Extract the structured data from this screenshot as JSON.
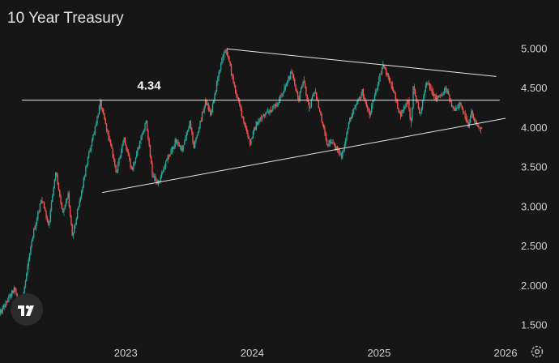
{
  "title": "10 Year Treasury",
  "colors": {
    "background": "#161616",
    "up": "#26a69a",
    "down": "#ef5350",
    "line": "#e6e6e6",
    "text": "#cfcfcf"
  },
  "icons": {
    "logo": "tradingview-logo-icon",
    "settings": "gear-icon"
  },
  "chart_data": {
    "type": "candlestick",
    "title": "10 Year Treasury",
    "ylim": [
      1.3,
      5.3
    ],
    "y_ticks": [
      "5.000",
      "4.500",
      "4.000",
      "3.500",
      "3.000",
      "2.500",
      "2.000",
      "1.500"
    ],
    "y_tick_values": [
      5.0,
      4.5,
      4.0,
      3.5,
      3.0,
      2.5,
      2.0,
      1.5
    ],
    "x_ticks": [
      "2023",
      "2024",
      "2025",
      "2026"
    ],
    "x_tick_dates": [
      "2023-01-01",
      "2024-01-01",
      "2025-01-01",
      "2026-01-01"
    ],
    "xlim": [
      "2022-01-03",
      "2026-01-15"
    ],
    "price_path": [
      {
        "date": "2022-01-03",
        "value": 1.63
      },
      {
        "date": "2022-02-15",
        "value": 1.95
      },
      {
        "date": "2022-03-07",
        "value": 1.72
      },
      {
        "date": "2022-04-10",
        "value": 2.65
      },
      {
        "date": "2022-05-05",
        "value": 3.1
      },
      {
        "date": "2022-05-25",
        "value": 2.75
      },
      {
        "date": "2022-06-14",
        "value": 3.45
      },
      {
        "date": "2022-07-05",
        "value": 2.9
      },
      {
        "date": "2022-07-20",
        "value": 3.15
      },
      {
        "date": "2022-08-01",
        "value": 2.6
      },
      {
        "date": "2022-08-20",
        "value": 3.0
      },
      {
        "date": "2022-09-15",
        "value": 3.6
      },
      {
        "date": "2022-10-21",
        "value": 4.3
      },
      {
        "date": "2022-11-15",
        "value": 3.85
      },
      {
        "date": "2022-12-07",
        "value": 3.42
      },
      {
        "date": "2022-12-28",
        "value": 3.88
      },
      {
        "date": "2023-01-20",
        "value": 3.45
      },
      {
        "date": "2023-02-15",
        "value": 3.85
      },
      {
        "date": "2023-03-02",
        "value": 4.08
      },
      {
        "date": "2023-03-20",
        "value": 3.4
      },
      {
        "date": "2023-04-06",
        "value": 3.28
      },
      {
        "date": "2023-04-25",
        "value": 3.52
      },
      {
        "date": "2023-05-26",
        "value": 3.82
      },
      {
        "date": "2023-06-15",
        "value": 3.72
      },
      {
        "date": "2023-07-06",
        "value": 4.05
      },
      {
        "date": "2023-07-18",
        "value": 3.75
      },
      {
        "date": "2023-08-21",
        "value": 4.33
      },
      {
        "date": "2023-09-05",
        "value": 4.15
      },
      {
        "date": "2023-10-03",
        "value": 4.8
      },
      {
        "date": "2023-10-19",
        "value": 4.99
      },
      {
        "date": "2023-11-15",
        "value": 4.45
      },
      {
        "date": "2023-12-27",
        "value": 3.8
      },
      {
        "date": "2024-01-15",
        "value": 4.05
      },
      {
        "date": "2024-02-05",
        "value": 4.15
      },
      {
        "date": "2024-03-15",
        "value": 4.3
      },
      {
        "date": "2024-04-25",
        "value": 4.7
      },
      {
        "date": "2024-05-15",
        "value": 4.35
      },
      {
        "date": "2024-05-29",
        "value": 4.62
      },
      {
        "date": "2024-06-15",
        "value": 4.22
      },
      {
        "date": "2024-07-01",
        "value": 4.47
      },
      {
        "date": "2024-08-05",
        "value": 3.78
      },
      {
        "date": "2024-08-20",
        "value": 3.82
      },
      {
        "date": "2024-09-16",
        "value": 3.62
      },
      {
        "date": "2024-10-10",
        "value": 4.1
      },
      {
        "date": "2024-11-15",
        "value": 4.45
      },
      {
        "date": "2024-12-06",
        "value": 4.15
      },
      {
        "date": "2025-01-13",
        "value": 4.79
      },
      {
        "date": "2025-02-10",
        "value": 4.5
      },
      {
        "date": "2025-03-04",
        "value": 4.15
      },
      {
        "date": "2025-03-28",
        "value": 4.35
      },
      {
        "date": "2025-04-04",
        "value": 3.99
      },
      {
        "date": "2025-04-11",
        "value": 4.49
      },
      {
        "date": "2025-05-01",
        "value": 4.15
      },
      {
        "date": "2025-05-21",
        "value": 4.6
      },
      {
        "date": "2025-06-15",
        "value": 4.35
      },
      {
        "date": "2025-07-15",
        "value": 4.48
      },
      {
        "date": "2025-08-05",
        "value": 4.2
      },
      {
        "date": "2025-08-25",
        "value": 4.3
      },
      {
        "date": "2025-09-17",
        "value": 4.03
      },
      {
        "date": "2025-09-25",
        "value": 4.18
      },
      {
        "date": "2025-10-16",
        "value": 3.98
      },
      {
        "date": "2025-10-28",
        "value": 3.97
      }
    ],
    "annotations": [
      {
        "type": "horizontal-line",
        "label": "4.34",
        "value": 4.34,
        "from": "2022-01-01",
        "to": "2025-12-15"
      },
      {
        "type": "trendline",
        "name": "upper-trendline",
        "from": {
          "date": "2023-10-19",
          "value": 4.99
        },
        "to": {
          "date": "2025-12-05",
          "value": 4.64
        }
      },
      {
        "type": "trendline",
        "name": "lower-trendline",
        "from": {
          "date": "2022-10-25",
          "value": 3.17
        },
        "to": {
          "date": "2026-01-01",
          "value": 4.11
        }
      }
    ]
  }
}
